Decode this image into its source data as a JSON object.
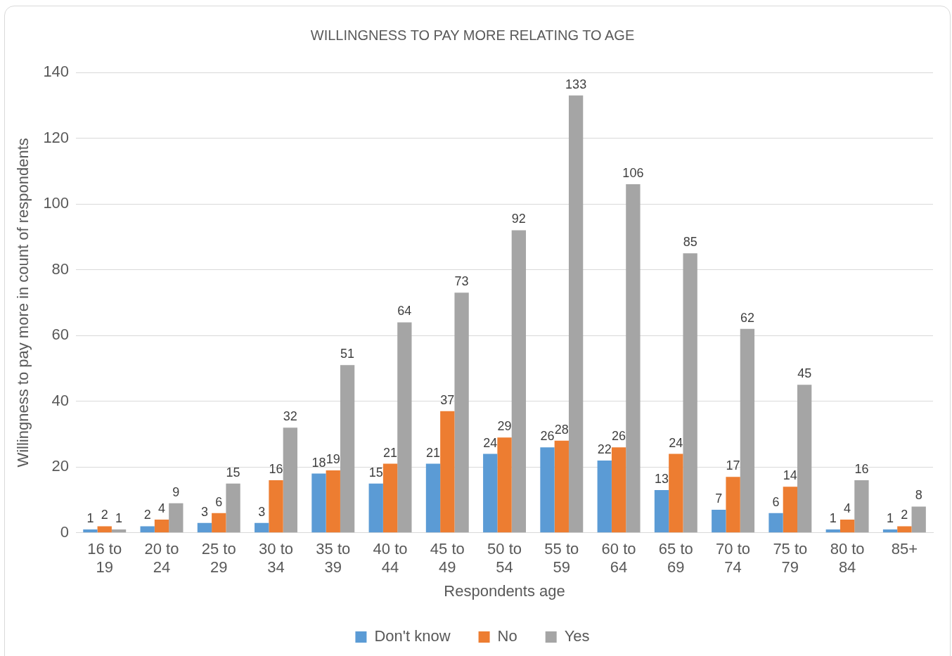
{
  "chart_data": {
    "type": "bar",
    "title": "WILLINGNESS TO PAY MORE RELATING TO AGE",
    "xlabel": "Respondents age",
    "ylabel": "Willingness to pay more in count of respondents",
    "categories": [
      "16 to 19",
      "20 to 24",
      "25 to 29",
      "30 to 34",
      "35 to 39",
      "40 to 44",
      "45 to 49",
      "50 to 54",
      "55 to 59",
      "60 to 64",
      "65 to 69",
      "70 to 74",
      "75 to 79",
      "80 to 84",
      "85+"
    ],
    "series": [
      {
        "name": "Don't know",
        "color": "#5b9bd5",
        "values": [
          1,
          2,
          3,
          3,
          18,
          15,
          21,
          24,
          26,
          22,
          13,
          7,
          6,
          1,
          1
        ]
      },
      {
        "name": "No",
        "color": "#ed7d31",
        "values": [
          2,
          4,
          6,
          16,
          19,
          21,
          37,
          29,
          28,
          26,
          24,
          17,
          14,
          4,
          2
        ]
      },
      {
        "name": "Yes",
        "color": "#a5a5a5",
        "values": [
          1,
          9,
          15,
          32,
          51,
          64,
          73,
          92,
          133,
          106,
          85,
          62,
          45,
          16,
          8
        ]
      }
    ],
    "ylim": [
      0,
      140
    ],
    "yticks": [
      0,
      20,
      40,
      60,
      80,
      100,
      120,
      140
    ],
    "grid": "y",
    "legend": "bottom",
    "data_labels": true
  }
}
